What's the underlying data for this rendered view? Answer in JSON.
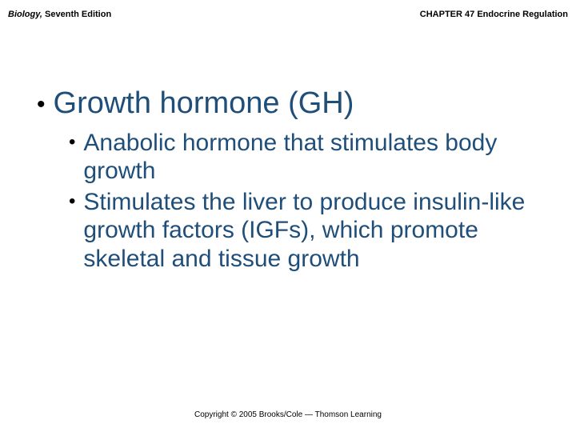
{
  "header": {
    "book_title_italic": "Biology,",
    "book_title_rest": " Seventh Edition",
    "chapter": "CHAPTER 47 Endocrine Regulation"
  },
  "content": {
    "title": "Growth hormone (GH)",
    "points": [
      "Anabolic hormone that stimulates body growth",
      "Stimulates the liver to produce insulin-like growth factors (IGFs), which promote skeletal and tissue growth"
    ]
  },
  "footer": {
    "copyright": "Copyright © 2005 Brooks/Cole — Thomson Learning"
  },
  "colors": {
    "heading": "#1f4e79",
    "text": "#000000",
    "background": "#ffffff"
  }
}
